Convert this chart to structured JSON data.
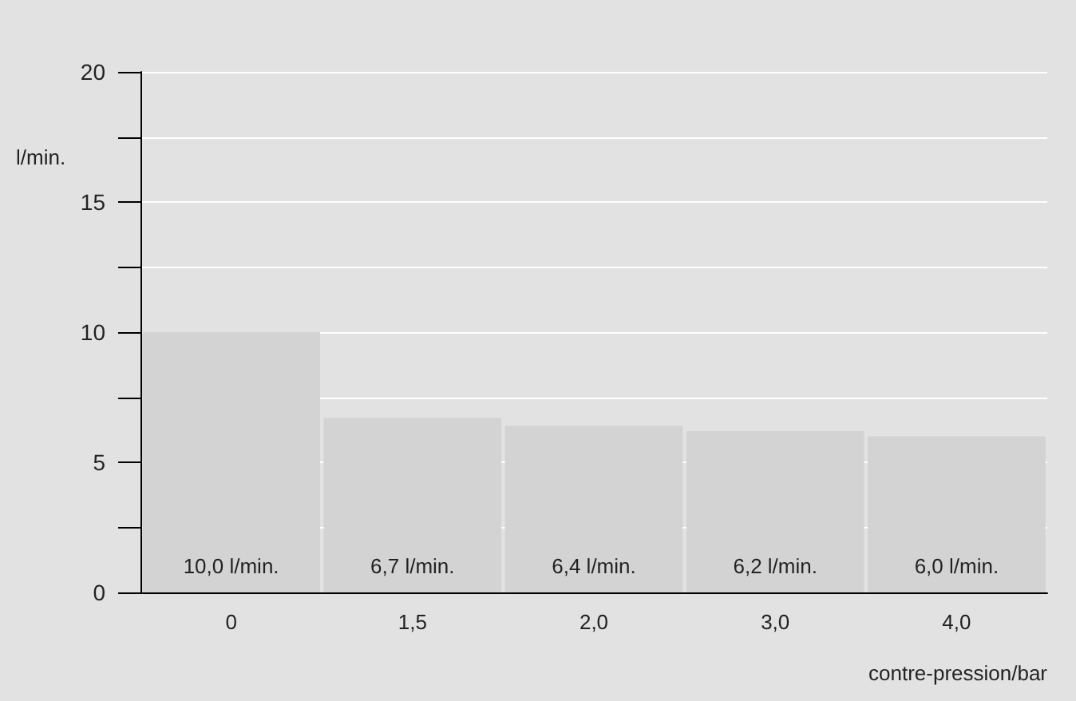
{
  "chart_data": {
    "type": "bar",
    "xlabel": "contre-pression/bar",
    "ylabel": "l/min.",
    "categories": [
      "0",
      "1,5",
      "2,0",
      "3,0",
      "4,0"
    ],
    "values": [
      10.0,
      6.7,
      6.4,
      6.2,
      6.0
    ],
    "value_labels": [
      "10,0 l/min.",
      "6,7 l/min.",
      "6,4 l/min.",
      "6,2 l/min.",
      "6,0 l/min."
    ],
    "color": "#d3d3d3",
    "ylim": [
      0,
      20
    ],
    "yticks": [
      0,
      {
        "value": 2.5,
        "label": null
      },
      5,
      {
        "value": 7.5,
        "label": null
      },
      10,
      {
        "value": 12.5,
        "label": null
      },
      15,
      {
        "value": 17.5,
        "label": null
      },
      20
    ],
    "grid": "y"
  }
}
